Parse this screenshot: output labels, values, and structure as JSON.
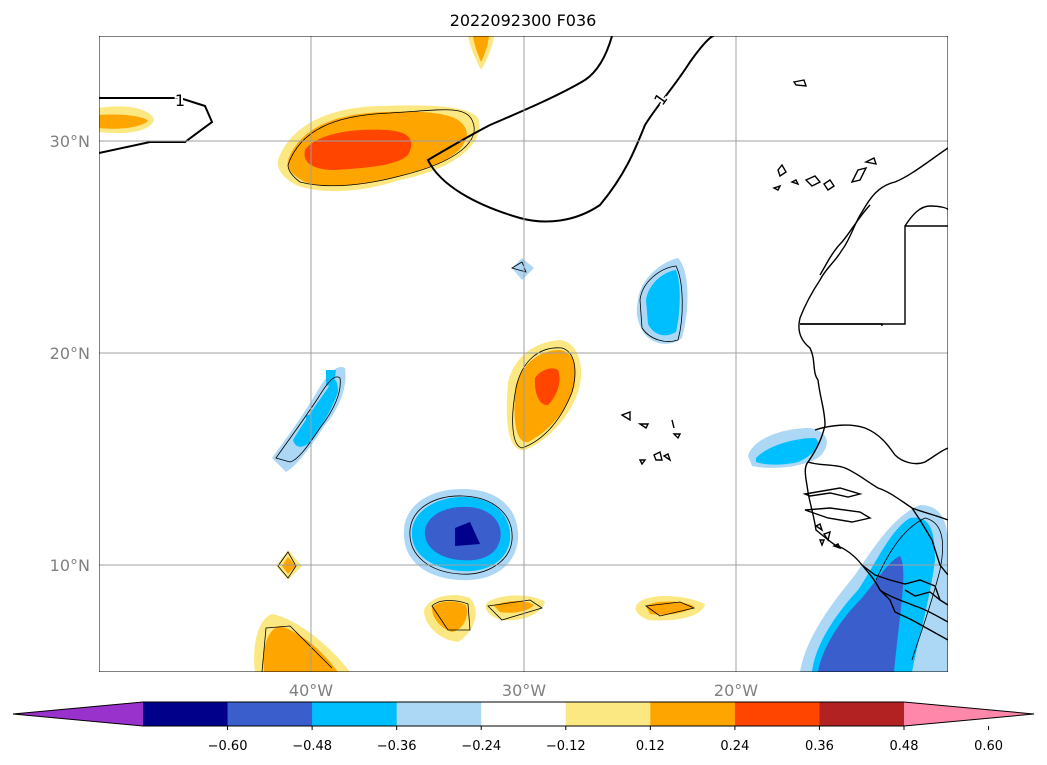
{
  "title": "2022092300 F036",
  "latitude_labels": [
    "30°N",
    "20°N",
    "10°N"
  ],
  "longitude_labels": [
    "40°W",
    "30°W",
    "20°W"
  ],
  "contour_labels": [
    "1",
    "1"
  ],
  "colorbar": {
    "colors": [
      "#9932cc",
      "#00008b",
      "#3a5fcd",
      "#00bfff",
      "#add8f5",
      "#ffffff",
      "#fce883",
      "#ffa500",
      "#ff4500",
      "#b22222",
      "#ff88aa"
    ],
    "tick_labels": [
      "−0.60",
      "−0.48",
      "−0.36",
      "−0.24",
      "−0.12",
      "0.12",
      "0.24",
      "0.36",
      "0.48",
      "0.60"
    ]
  }
}
